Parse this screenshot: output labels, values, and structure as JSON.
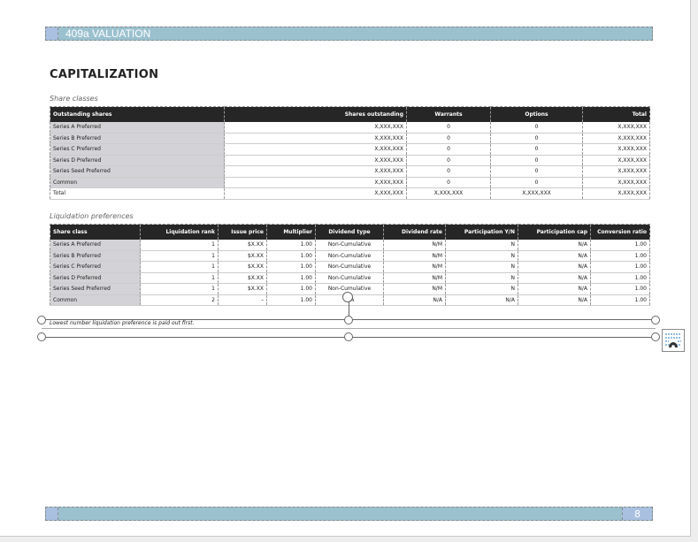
{
  "header": {
    "title": "409a VALUATION"
  },
  "footer": {
    "page_number": "8"
  },
  "page_title": "CAPITALIZATION",
  "share_classes": {
    "caption": "Share classes",
    "columns": [
      "Outstanding shares",
      "Shares outstanding",
      "Warrants",
      "Options",
      "Total"
    ],
    "rows": [
      [
        "Series A Preferred",
        "X,XXX,XXX",
        "0",
        "0",
        "X,XXX,XXX"
      ],
      [
        "Series B Preferred",
        "X,XXX,XXX",
        "0",
        "0",
        "X,XXX,XXX"
      ],
      [
        "Series C Preferred",
        "X,XXX,XXX",
        "0",
        "0",
        "X,XXX,XXX"
      ],
      [
        "Series D Preferred",
        "X,XXX,XXX",
        "0",
        "0",
        "X,XXX,XXX"
      ],
      [
        "Series Seed Preferred",
        "X,XXX,XXX",
        "0",
        "0",
        "X,XXX,XXX"
      ],
      [
        "Common",
        "X,XXX,XXX",
        "0",
        "0",
        "X,XXX,XXX"
      ],
      [
        "Total",
        "X,XXX,XXX",
        "X,XXX,XXX",
        "X,XXX,XXX",
        "X,XXX,XXX"
      ]
    ]
  },
  "liquidation": {
    "caption": "Liquidation preferences",
    "columns": [
      "Share class",
      "Liquidation rank",
      "Issue price",
      "Multiplier",
      "Dividend type",
      "Dividend rate",
      "Participation Y/N",
      "Participation cap",
      "Conversion ratio"
    ],
    "rows": [
      [
        "Series A Preferred",
        "1",
        "$X.XX",
        "1.00",
        "Non-Cumulative",
        "N/M",
        "N",
        "N/A",
        "1.00"
      ],
      [
        "Series B Preferred",
        "1",
        "$X.XX",
        "1.00",
        "Non-Cumulative",
        "N/M",
        "N",
        "N/A",
        "1.00"
      ],
      [
        "Series C Preferred",
        "1",
        "$X.XX",
        "1.00",
        "Non-Cumulative",
        "N/M",
        "N",
        "N/A",
        "1.00"
      ],
      [
        "Series D Preferred",
        "1",
        "$X.XX",
        "1.00",
        "Non-Cumulative",
        "N/M",
        "N",
        "N/A",
        "1.00"
      ],
      [
        "Series Seed Preferred",
        "1",
        "$X.XX",
        "1.00",
        "Non-Cumulative",
        "N/M",
        "N",
        "N/A",
        "1.00"
      ],
      [
        "Common",
        "2",
        "–",
        "1.00",
        "N/A",
        "N/A",
        "N/A",
        "N/A",
        "1.00"
      ]
    ]
  },
  "footnote": "Lowest number liquidation preference is paid out first."
}
